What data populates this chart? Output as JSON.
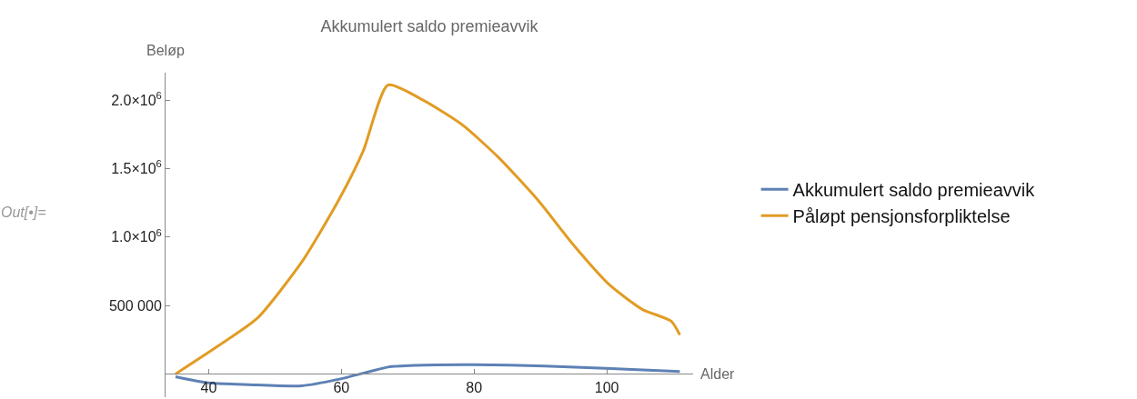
{
  "chart_data": {
    "type": "line",
    "title": "Akkumulert saldo premieavvik",
    "xlabel": "Alder",
    "ylabel": "Beløp",
    "annotations": [
      "Out[•]="
    ],
    "series": [
      {
        "name": "Akkumulert saldo premieavvik",
        "color": "#5e81b5",
        "x": [
          35,
          40,
          46,
          54,
          59.7,
          64.3,
          67,
          71,
          80,
          90.7,
          99.8,
          111
        ],
        "values": [
          -20000,
          -65000,
          -78000,
          -87000,
          -38000,
          18000,
          50000,
          62000,
          67000,
          58000,
          40000,
          18000
        ]
      },
      {
        "name": "Påløpt pensjonsforpliktelse",
        "color": "#e19c24",
        "x": [
          35,
          41.5,
          47.4,
          54.2,
          59.6,
          63.3,
          67,
          72.3,
          78.2,
          83.7,
          89.6,
          95,
          100.4,
          105.4,
          109.7,
          111
        ],
        "values": [
          0,
          207000,
          410000,
          830000,
          1270000,
          1630000,
          2110000,
          2000000,
          1820000,
          1580000,
          1270000,
          940000,
          650000,
          470000,
          385000,
          285000
        ]
      }
    ],
    "xlim": [
      33.5,
      113
    ],
    "ylim": [
      -170000,
      2200000
    ],
    "xticks": [
      40,
      60,
      80,
      100
    ],
    "yticks": [
      {
        "value": 500000,
        "label": "500 000"
      },
      {
        "value": 1000000,
        "label": "1.0×10$^{6}$"
      },
      {
        "value": 1500000,
        "label": "1.5×10$^{6}$"
      },
      {
        "value": 2000000,
        "label": "2.0×10$^{6}$"
      }
    ],
    "legend": "right",
    "line_style": "solid",
    "marker": "none"
  }
}
